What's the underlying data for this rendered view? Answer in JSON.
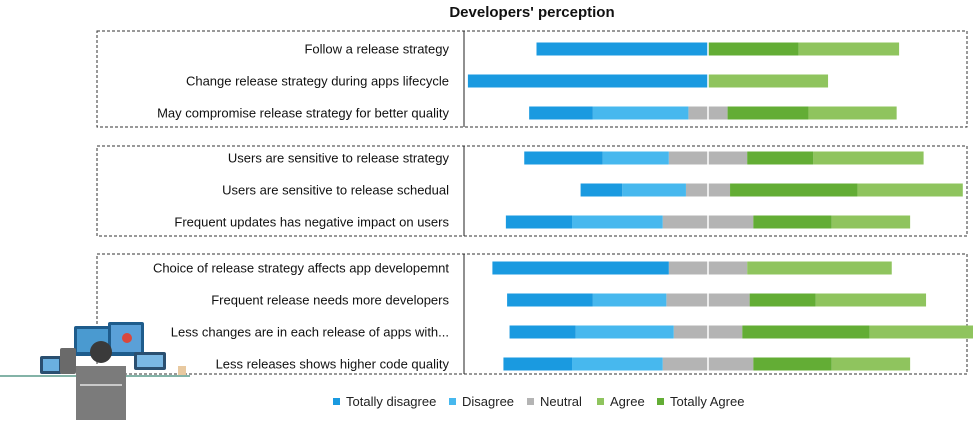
{
  "chart_data": {
    "type": "bar",
    "stacked": "diverging",
    "orientation": "horizontal",
    "title": "Developers' perception",
    "xlim": [
      -100,
      100
    ],
    "legend_position": "bottom",
    "series": [
      {
        "name": "Totally disagree",
        "color": "#1a9ae0"
      },
      {
        "name": "Disagree",
        "color": "#47b8ee"
      },
      {
        "name": "Neutral",
        "color": "#b4b4b4"
      },
      {
        "name": "Agree",
        "color": "#8fc45e"
      },
      {
        "name": "Totally Agree",
        "color": "#63ad35"
      }
    ],
    "groups": [
      {
        "rows": [
          {
            "label": "Follow a release strategy",
            "totally_disagree": 70,
            "disagree": 0,
            "neutral": 0,
            "agree": 41,
            "totally_agree": 37
          },
          {
            "label": "Change release strategy during apps lifecycle",
            "totally_disagree": 98,
            "disagree": 0,
            "neutral": 0,
            "agree": 49,
            "totally_agree": 0
          },
          {
            "label": "May compromise release strategy for better quality",
            "totally_disagree": 26,
            "disagree": 39,
            "neutral": 16,
            "agree": 36,
            "totally_agree": 33
          }
        ]
      },
      {
        "rows": [
          {
            "label": "Users are sensitive to release strategy",
            "totally_disagree": 32,
            "disagree": 27,
            "neutral": 32,
            "agree": 45,
            "totally_agree": 27
          },
          {
            "label": "Users are sensitive to release schedual",
            "totally_disagree": 17,
            "disagree": 26,
            "neutral": 18,
            "agree": 43,
            "totally_agree": 52
          },
          {
            "label": "Frequent updates has negative impact on users",
            "totally_disagree": 27,
            "disagree": 37,
            "neutral": 37,
            "agree": 32,
            "totally_agree": 32
          }
        ]
      },
      {
        "rows": [
          {
            "label": "Choice of release strategy affects app developemnt",
            "totally_disagree": 72,
            "disagree": 0,
            "neutral": 32,
            "agree": 59,
            "totally_agree": 0
          },
          {
            "label": "Frequent release needs more developers",
            "totally_disagree": 35,
            "disagree": 30,
            "neutral": 34,
            "agree": 45,
            "totally_agree": 27
          },
          {
            "label": "Less changes are in each release of apps with...",
            "totally_disagree": 27,
            "disagree": 40,
            "neutral": 28,
            "agree": 43,
            "totally_agree": 52
          },
          {
            "label": "Less releases shows higher code quality",
            "totally_disagree": 28,
            "disagree": 37,
            "neutral": 37,
            "agree": 32,
            "totally_agree": 32
          }
        ]
      }
    ]
  }
}
